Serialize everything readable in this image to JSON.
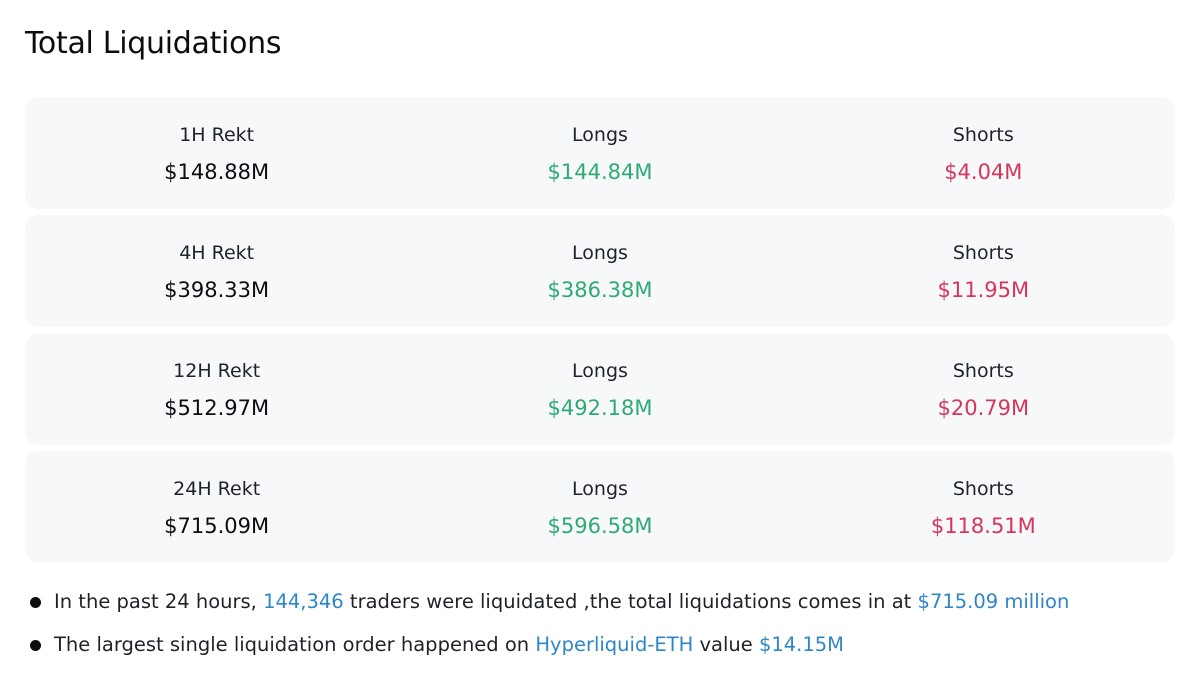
{
  "header": {
    "title": "Total Liquidations"
  },
  "rows": [
    {
      "period_label": "1H Rekt",
      "total": "$148.88M",
      "longs_label": "Longs",
      "longs_value": "$144.84M",
      "shorts_label": "Shorts",
      "shorts_value": "$4.04M"
    },
    {
      "period_label": "4H Rekt",
      "total": "$398.33M",
      "longs_label": "Longs",
      "longs_value": "$386.38M",
      "shorts_label": "Shorts",
      "shorts_value": "$11.95M"
    },
    {
      "period_label": "12H Rekt",
      "total": "$512.97M",
      "longs_label": "Longs",
      "longs_value": "$492.18M",
      "shorts_label": "Shorts",
      "shorts_value": "$20.79M"
    },
    {
      "period_label": "24H Rekt",
      "total": "$715.09M",
      "longs_label": "Longs",
      "longs_value": "$596.58M",
      "shorts_label": "Shorts",
      "shorts_value": "$118.51M"
    }
  ],
  "summary": {
    "line1": {
      "prefix": "In the past 24 hours, ",
      "traders_count": "144,346",
      "middle": " traders were liquidated ,the total liquidations comes in at ",
      "total_amount": "$715.09 million"
    },
    "line2": {
      "prefix": "The largest single liquidation order happened on ",
      "pair": "Hyperliquid-ETH",
      "middle": " value ",
      "amount": "$14.15M"
    }
  },
  "colors": {
    "long": "#2eaa73",
    "short": "#d6365a",
    "highlight": "#2e86c8",
    "row_background": "#f7f8fa"
  }
}
